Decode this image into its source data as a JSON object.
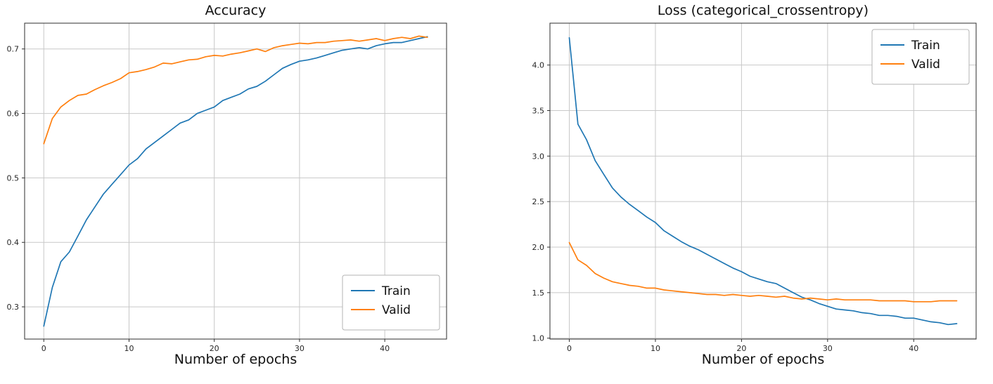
{
  "figure": {
    "background": "#ffffff",
    "text_color": "#262626",
    "grid_color": "#c8c8c8",
    "spine_color": "#2e2e2e",
    "legend_border_color": "#b3b3b3"
  },
  "chart_data": [
    {
      "type": "line",
      "title": "Accuracy",
      "xlabel": "Number of epochs",
      "ylabel": "",
      "grid": true,
      "legend_position": "lower right",
      "xlim": [
        -2.25,
        47.25
      ],
      "ylim": [
        0.25,
        0.74
      ],
      "xticks": [
        0,
        10,
        20,
        30,
        40
      ],
      "xtick_labels": [
        "0",
        "10",
        "20",
        "30",
        "40"
      ],
      "yticks": [
        0.3,
        0.4,
        0.5,
        0.6,
        0.7
      ],
      "ytick_labels": [
        "0.3",
        "0.4",
        "0.5",
        "0.6",
        "0.7"
      ],
      "x": [
        0,
        1,
        2,
        3,
        4,
        5,
        6,
        7,
        8,
        9,
        10,
        11,
        12,
        13,
        14,
        15,
        16,
        17,
        18,
        19,
        20,
        21,
        22,
        23,
        24,
        25,
        26,
        27,
        28,
        29,
        30,
        31,
        32,
        33,
        34,
        35,
        36,
        37,
        38,
        39,
        40,
        41,
        42,
        43,
        44,
        45
      ],
      "series": [
        {
          "name": "Train",
          "color": "#1f77b4",
          "values": [
            0.27,
            0.33,
            0.37,
            0.385,
            0.41,
            0.435,
            0.455,
            0.475,
            0.49,
            0.505,
            0.52,
            0.53,
            0.545,
            0.555,
            0.565,
            0.575,
            0.585,
            0.59,
            0.6,
            0.605,
            0.61,
            0.62,
            0.625,
            0.63,
            0.638,
            0.642,
            0.65,
            0.66,
            0.67,
            0.676,
            0.681,
            0.683,
            0.686,
            0.69,
            0.694,
            0.698,
            0.7,
            0.702,
            0.7,
            0.705,
            0.708,
            0.71,
            0.71,
            0.713,
            0.716,
            0.719
          ]
        },
        {
          "name": "Valid",
          "color": "#ff7f0e",
          "values": [
            0.553,
            0.592,
            0.61,
            0.62,
            0.628,
            0.63,
            0.637,
            0.643,
            0.648,
            0.654,
            0.663,
            0.665,
            0.668,
            0.672,
            0.678,
            0.677,
            0.68,
            0.683,
            0.684,
            0.688,
            0.69,
            0.689,
            0.692,
            0.694,
            0.697,
            0.7,
            0.696,
            0.702,
            0.705,
            0.707,
            0.709,
            0.708,
            0.71,
            0.71,
            0.712,
            0.713,
            0.714,
            0.712,
            0.714,
            0.716,
            0.713,
            0.716,
            0.718,
            0.716,
            0.72,
            0.718
          ]
        }
      ]
    },
    {
      "type": "line",
      "title": "Loss (categorical_crossentropy)",
      "xlabel": "Number of epochs",
      "ylabel": "",
      "grid": true,
      "legend_position": "upper right",
      "xlim": [
        -2.25,
        47.25
      ],
      "ylim": [
        0.99,
        4.46
      ],
      "xticks": [
        0,
        10,
        20,
        30,
        40
      ],
      "xtick_labels": [
        "0",
        "10",
        "20",
        "30",
        "40"
      ],
      "yticks": [
        1.0,
        1.5,
        2.0,
        2.5,
        3.0,
        3.5,
        4.0
      ],
      "ytick_labels": [
        "1.0",
        "1.5",
        "2.0",
        "2.5",
        "3.0",
        "3.5",
        "4.0"
      ],
      "x": [
        0,
        1,
        2,
        3,
        4,
        5,
        6,
        7,
        8,
        9,
        10,
        11,
        12,
        13,
        14,
        15,
        16,
        17,
        18,
        19,
        20,
        21,
        22,
        23,
        24,
        25,
        26,
        27,
        28,
        29,
        30,
        31,
        32,
        33,
        34,
        35,
        36,
        37,
        38,
        39,
        40,
        41,
        42,
        43,
        44,
        45
      ],
      "series": [
        {
          "name": "Train",
          "color": "#1f77b4",
          "values": [
            4.3,
            3.35,
            3.18,
            2.95,
            2.8,
            2.65,
            2.55,
            2.47,
            2.4,
            2.33,
            2.27,
            2.18,
            2.12,
            2.06,
            2.01,
            1.97,
            1.92,
            1.87,
            1.82,
            1.77,
            1.73,
            1.68,
            1.65,
            1.62,
            1.6,
            1.55,
            1.5,
            1.45,
            1.42,
            1.38,
            1.35,
            1.32,
            1.31,
            1.3,
            1.28,
            1.27,
            1.25,
            1.25,
            1.24,
            1.22,
            1.22,
            1.2,
            1.18,
            1.17,
            1.15,
            1.16
          ]
        },
        {
          "name": "Valid",
          "color": "#ff7f0e",
          "values": [
            2.05,
            1.86,
            1.8,
            1.71,
            1.66,
            1.62,
            1.6,
            1.58,
            1.57,
            1.55,
            1.55,
            1.53,
            1.52,
            1.51,
            1.5,
            1.49,
            1.48,
            1.48,
            1.47,
            1.48,
            1.47,
            1.46,
            1.47,
            1.46,
            1.45,
            1.46,
            1.44,
            1.43,
            1.44,
            1.43,
            1.42,
            1.43,
            1.42,
            1.42,
            1.42,
            1.42,
            1.41,
            1.41,
            1.41,
            1.41,
            1.4,
            1.4,
            1.4,
            1.41,
            1.41,
            1.41
          ]
        }
      ]
    }
  ]
}
